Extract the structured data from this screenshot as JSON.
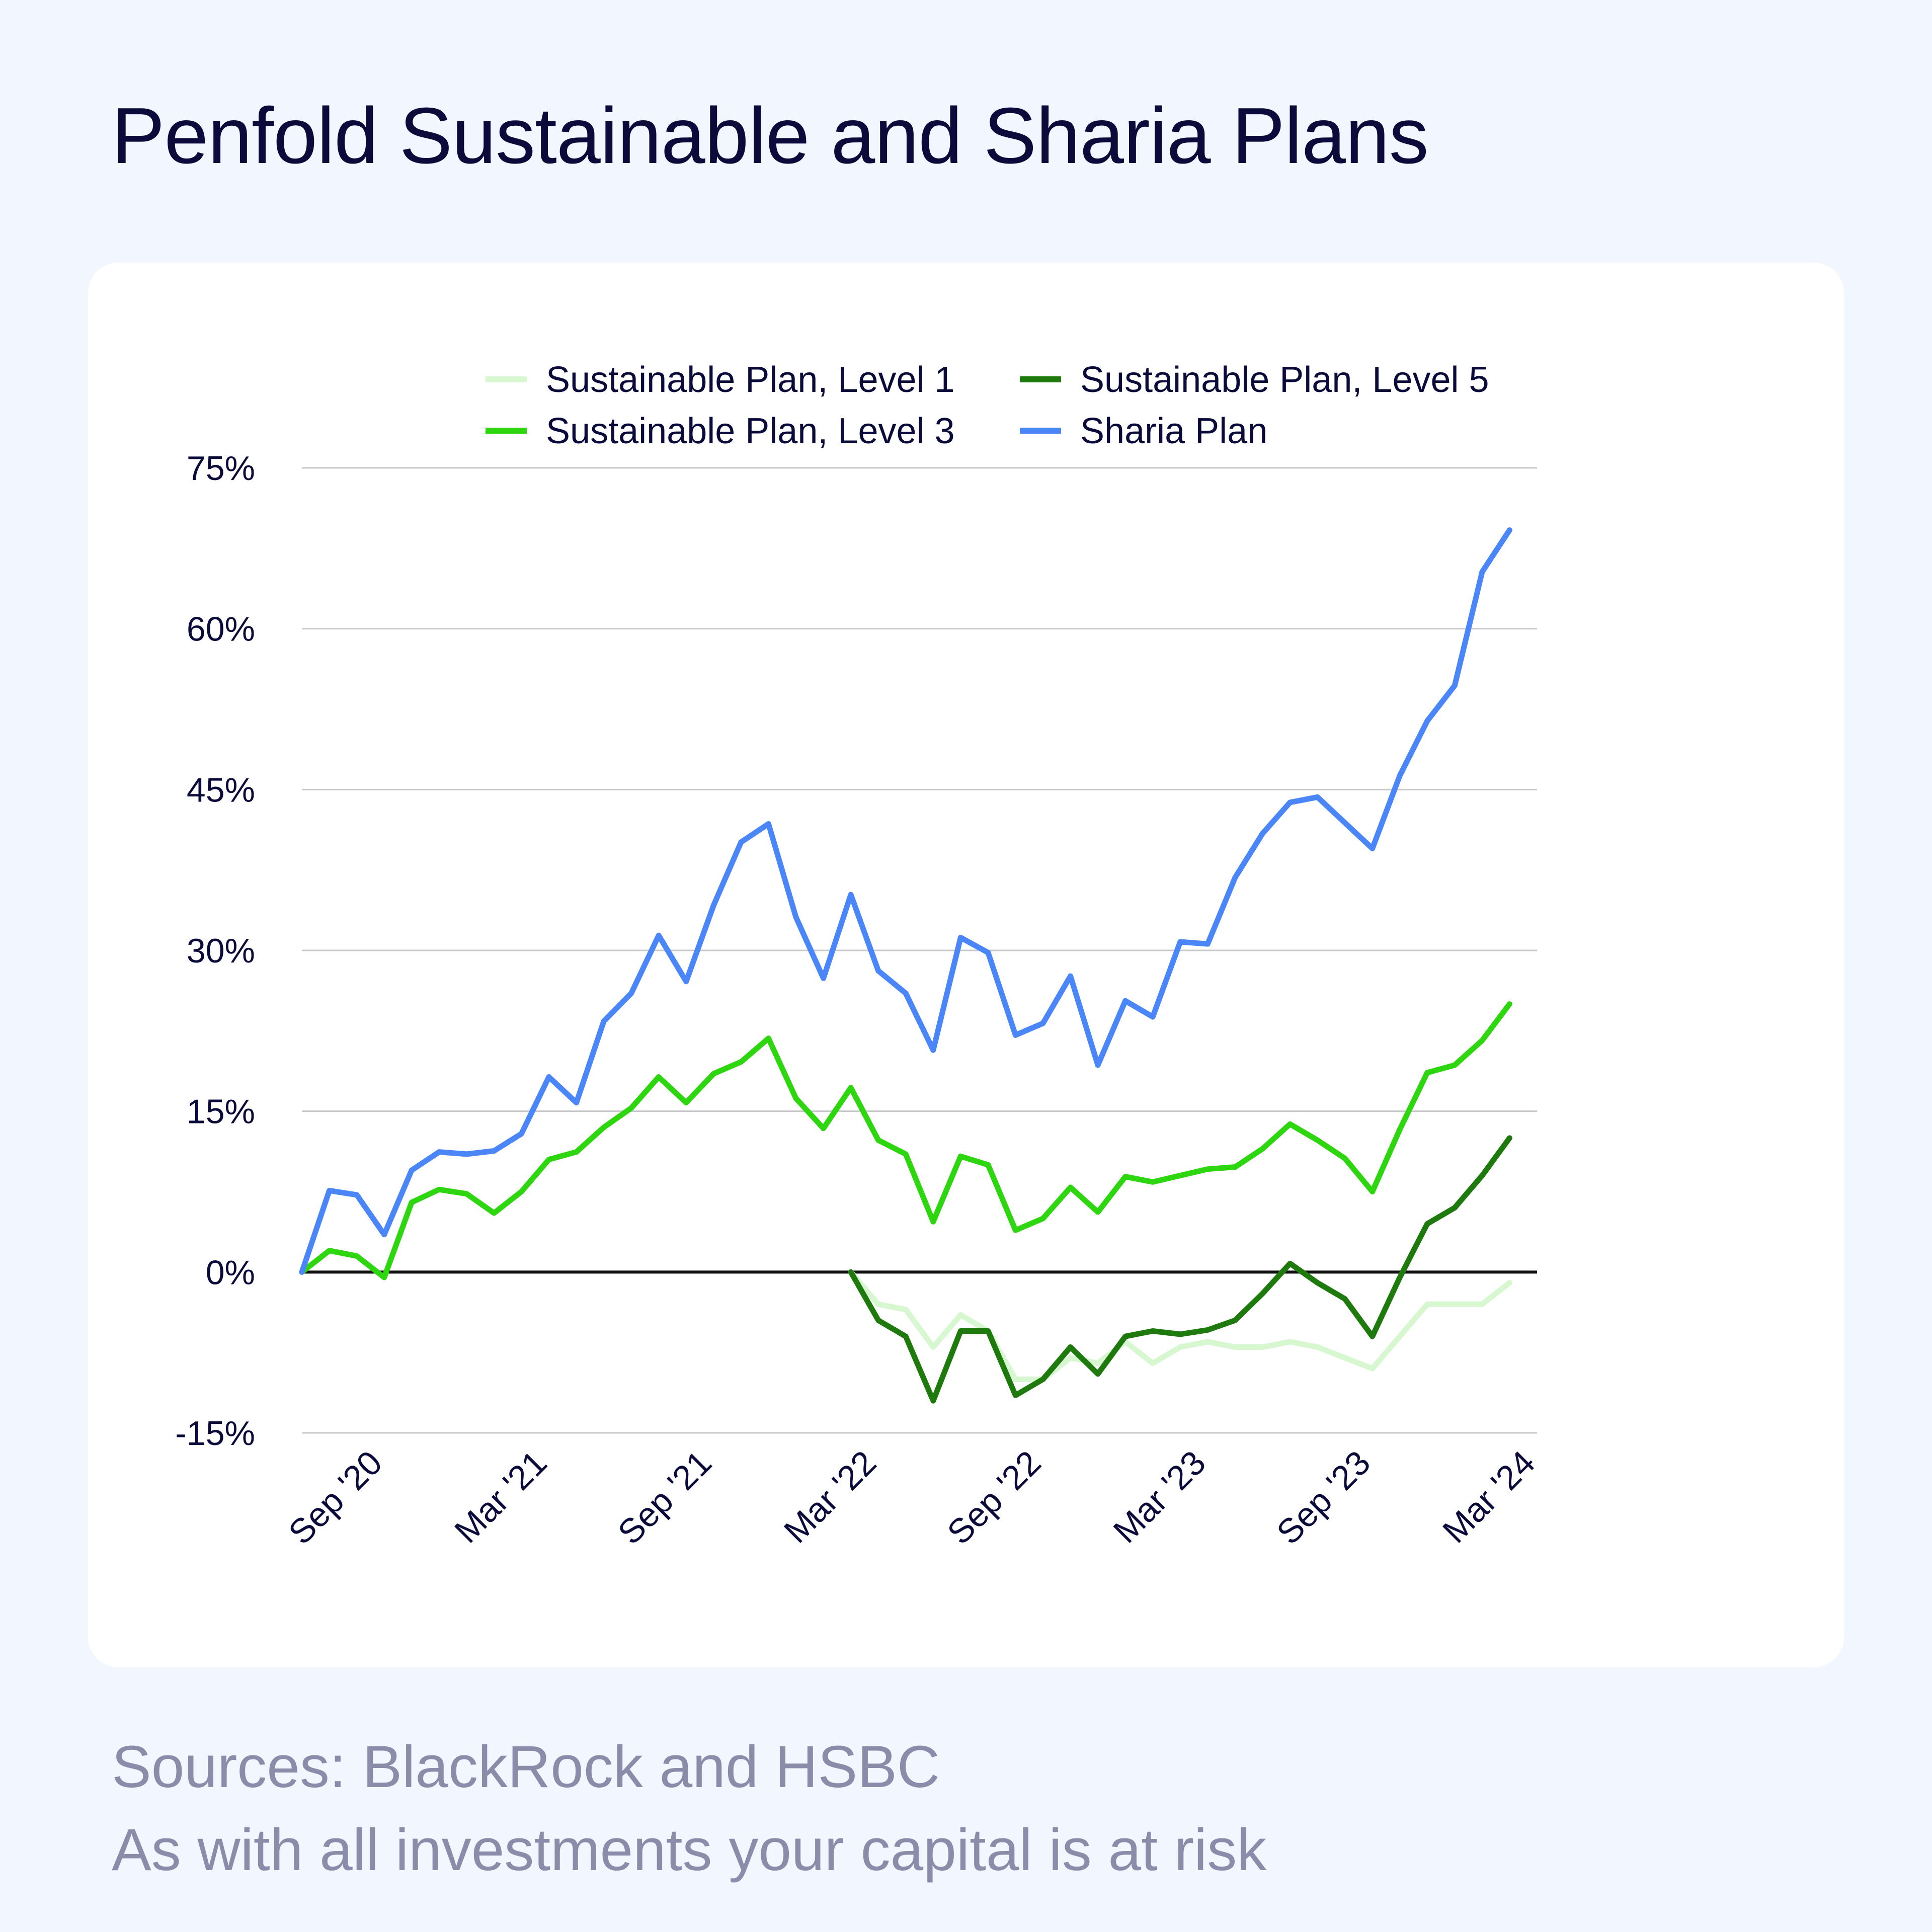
{
  "title": "Penfold Sustainable and Sharia Plans",
  "footer": {
    "sources": "Sources: BlackRock and HSBC",
    "disclaimer": "As with all investments your capital is at risk"
  },
  "colors": {
    "background": "#f2f6fe",
    "card": "#ffffff",
    "title": "#0b0b3b",
    "gridline": "#c8c8cc",
    "zero_line": "#111111"
  },
  "chart_data": {
    "type": "line",
    "ylim": [
      -15,
      75
    ],
    "yticks": [
      75,
      60,
      45,
      30,
      15,
      0,
      -15
    ],
    "ytick_labels": [
      "75%",
      "60%",
      "45%",
      "30%",
      "15%",
      "0%",
      "-15%"
    ],
    "x_months": [
      "2020-06",
      "2020-07",
      "2020-08",
      "2020-09",
      "2020-10",
      "2020-11",
      "2020-12",
      "2021-01",
      "2021-02",
      "2021-03",
      "2021-04",
      "2021-05",
      "2021-06",
      "2021-07",
      "2021-08",
      "2021-09",
      "2021-10",
      "2021-11",
      "2021-12",
      "2022-01",
      "2022-02",
      "2022-03",
      "2022-04",
      "2022-05",
      "2022-06",
      "2022-07",
      "2022-08",
      "2022-09",
      "2022-10",
      "2022-11",
      "2022-12",
      "2023-01",
      "2023-02",
      "2023-03",
      "2023-04",
      "2023-05",
      "2023-06",
      "2023-07",
      "2023-08",
      "2023-09",
      "2023-10",
      "2023-11",
      "2023-12",
      "2024-01",
      "2024-02",
      "2024-03"
    ],
    "xticks": [
      {
        "month": "2020-09",
        "label": "Sep '20"
      },
      {
        "month": "2021-03",
        "label": "Mar '21"
      },
      {
        "month": "2021-09",
        "label": "Sep '21"
      },
      {
        "month": "2022-03",
        "label": "Mar '22"
      },
      {
        "month": "2022-09",
        "label": "Sep '22"
      },
      {
        "month": "2023-03",
        "label": "Mar '23"
      },
      {
        "month": "2023-09",
        "label": "Sep '23"
      },
      {
        "month": "2024-03",
        "label": "Mar '24"
      }
    ],
    "legend_position": "top",
    "grid": true,
    "series": [
      {
        "name": "Sustainable Plan, Level 1",
        "color": "#d6f7cf",
        "start_month": "2022-02",
        "values": [
          0,
          -3,
          -3.5,
          -7,
          -4,
          -5.5,
          -10,
          -10,
          -8,
          -8.5,
          -6.5,
          -8.5,
          -7,
          -6.5,
          -7,
          -7,
          -6.5,
          -7,
          -8,
          -9,
          -6,
          -3,
          -3,
          -3,
          -1
        ]
      },
      {
        "name": "Sustainable Plan, Level 3",
        "color": "#2ed60f",
        "start_month": "2020-06",
        "values": [
          0,
          2,
          1.5,
          -0.5,
          6.5,
          7.7,
          7.3,
          5.5,
          7.5,
          10.5,
          11.2,
          13.5,
          15.3,
          18.2,
          15.8,
          18.5,
          19.6,
          21.8,
          16.2,
          13.4,
          17.2,
          12.3,
          11,
          4.7,
          10.8,
          10,
          3.9,
          5,
          7.9,
          5.6,
          8.9,
          8.4,
          9,
          9.6,
          9.8,
          11.5,
          13.8,
          12.3,
          10.6,
          7.5,
          13.3,
          18.6,
          19.3,
          21.6,
          25
        ]
      },
      {
        "name": "Sustainable Plan, Level 5",
        "color": "#1f7a0e",
        "start_month": "2022-02",
        "values": [
          0,
          -4.5,
          -6,
          -12,
          -5.5,
          -5.5,
          -11.5,
          -10,
          -7,
          -9.5,
          -6,
          -5.5,
          -5.8,
          -5.4,
          -4.5,
          -2,
          0.8,
          -1,
          -2.5,
          -6,
          -0.5,
          4.5,
          6,
          9,
          12.5
        ]
      },
      {
        "name": "Sharia Plan",
        "color": "#4a86f7",
        "start_month": "2020-06",
        "values": [
          0,
          7.6,
          7.2,
          3.5,
          9.5,
          11.2,
          11,
          11.3,
          12.9,
          18.2,
          15.8,
          23.4,
          26,
          31.4,
          27.1,
          34.2,
          40.1,
          41.8,
          33.1,
          27.4,
          35.2,
          28.1,
          26,
          20.7,
          31.2,
          29.8,
          22.1,
          23.2,
          27.6,
          19.3,
          25.3,
          23.8,
          30.8,
          30.6,
          36.8,
          40.9,
          43.8,
          44.3,
          41.9,
          39.5,
          46.3,
          51.4,
          54.7,
          65.3,
          69.2
        ]
      }
    ]
  }
}
